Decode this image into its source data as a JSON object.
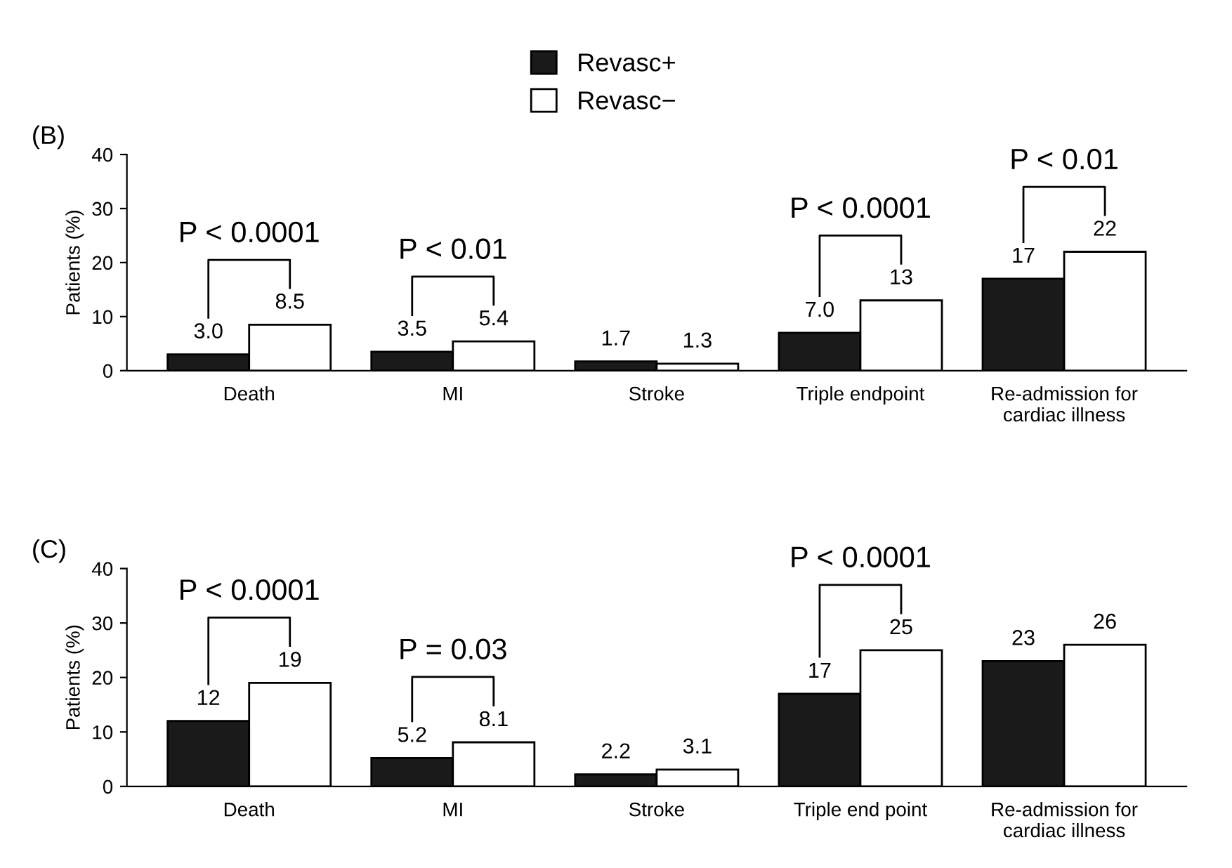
{
  "chart_data": [
    {
      "type": "bar",
      "categories": [
        "Death",
        "MI",
        "Stroke",
        "Triple endpoint",
        "Re-admission for\ncardiac illness"
      ],
      "ylabel": "Patients (%)",
      "ylim": [
        0,
        40
      ],
      "yticks": [
        0,
        10,
        20,
        30,
        40
      ],
      "legend": "top",
      "grid": false,
      "series": [
        {
          "name": "Revasc+",
          "color": "#1a1a1a",
          "values": [
            3.0,
            3.5,
            1.7,
            7.0,
            17
          ],
          "value_labels": [
            "3.0",
            "3.5",
            "1.7",
            "7.0",
            "17"
          ]
        },
        {
          "name": "Revasc−",
          "color": "#ffffff",
          "values": [
            8.5,
            5.4,
            1.3,
            13,
            22
          ],
          "value_labels": [
            "8.5",
            "5.4",
            "1.3",
            "13",
            "22"
          ]
        }
      ],
      "annotations": [
        "(B)",
        "P < 0.0001",
        "P < 0.01",
        "P < 0.0001",
        "P < 0.01"
      ]
    },
    {
      "type": "bar",
      "categories": [
        "Death",
        "MI",
        "Stroke",
        "Triple end point",
        "Re-admission for\ncardiac illness"
      ],
      "ylabel": "Patients (%)",
      "ylim": [
        0,
        40
      ],
      "yticks": [
        0,
        10,
        20,
        30,
        40
      ],
      "grid": false,
      "series": [
        {
          "color": "#1a1a1a",
          "values": [
            12,
            5.2,
            2.2,
            17,
            23
          ],
          "value_labels": [
            "12",
            "5.2",
            "2.2",
            "17",
            "23"
          ]
        },
        {
          "color": "#ffffff",
          "values": [
            19,
            8.1,
            3.1,
            25,
            26
          ],
          "value_labels": [
            "19",
            "8.1",
            "3.1",
            "25",
            "26"
          ]
        }
      ],
      "annotations": [
        "(C)",
        "P < 0.0001",
        "P = 0.03",
        "P < 0.0001"
      ]
    }
  ]
}
